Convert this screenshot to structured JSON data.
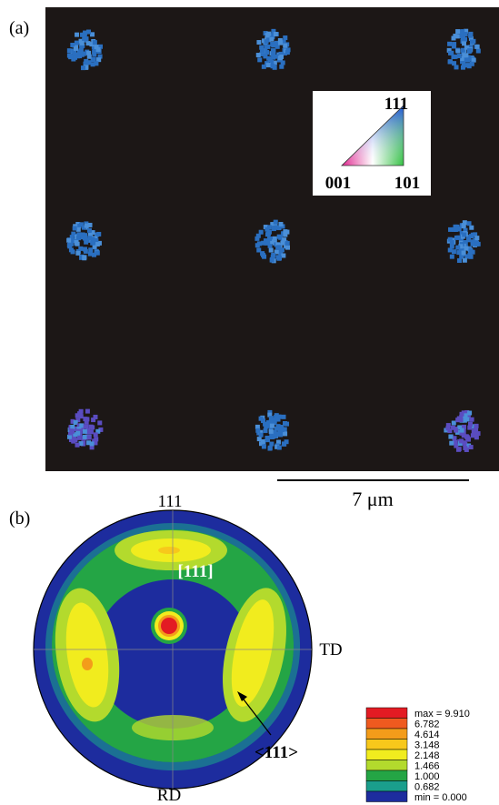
{
  "panel_a": {
    "label": "(a)",
    "inset": {
      "top": "111",
      "left": "001",
      "right": "101"
    },
    "scale_bar": "7 μm"
  },
  "panel_b": {
    "label": "(b)",
    "top": "111",
    "center": "[111]",
    "right": "TD",
    "bottom": "RD",
    "arrow": "<111>",
    "legend": [
      {
        "label": "max = 9.910",
        "color": "#e31b23"
      },
      {
        "label": "6.782",
        "color": "#ef5a1f"
      },
      {
        "label": "4.614",
        "color": "#f39c1a"
      },
      {
        "label": "3.148",
        "color": "#f7c81b"
      },
      {
        "label": "2.148",
        "color": "#f1ec1e"
      },
      {
        "label": "1.466",
        "color": "#b3da2d"
      },
      {
        "label": "1.000",
        "color": "#24a545"
      },
      {
        "label": "0.682",
        "color": "#1a9e8c"
      },
      {
        "label": "min = 0.000",
        "color": "#1d2c9e"
      }
    ]
  }
}
